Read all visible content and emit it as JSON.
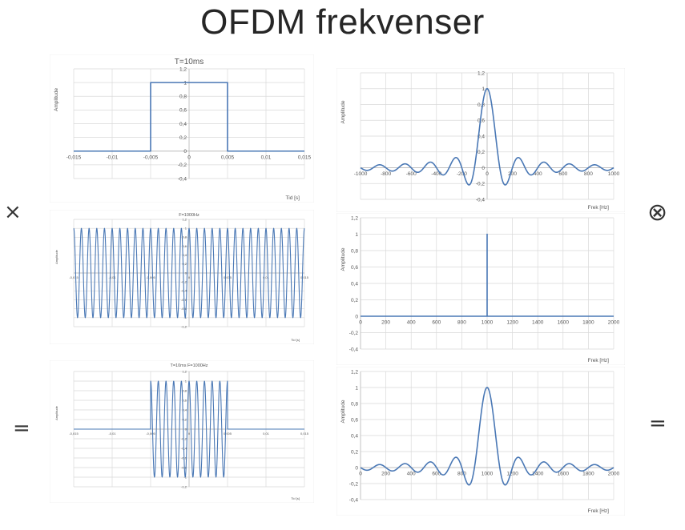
{
  "slide": {
    "title": "OFDM frekvenser",
    "operators": {
      "times": "×",
      "convolve": "⊗",
      "equals_left": "=",
      "equals_right": "="
    }
  },
  "colors": {
    "line": "#4a78b5",
    "grid": "#d9d9d9",
    "axis": "#bfbfbf"
  },
  "chart_data": [
    {
      "id": "rect_time",
      "type": "line",
      "title": "T=10ms",
      "xlabel": "Tid [s]",
      "ylabel": "Amplitude",
      "xlim": [
        -0.015,
        0.015
      ],
      "ylim": [
        -0.4,
        1.2
      ],
      "xticks": [
        "-0,015",
        "-0,01",
        "-0,005",
        "0",
        "0,005",
        "0,01",
        "0,015"
      ],
      "yticks": [
        "1,2",
        "1",
        "0,8",
        "0,6",
        "0,4",
        "0,2",
        "0",
        "-0,2",
        "-0,4"
      ],
      "series": [
        {
          "x": [
            -0.015,
            -0.005,
            -0.005,
            0.005,
            0.005,
            0.015
          ],
          "y": [
            0,
            0,
            1,
            1,
            0,
            0
          ]
        }
      ]
    },
    {
      "id": "sinc_freq",
      "type": "line",
      "title": "",
      "xlabel": "Frek [Hz]",
      "ylabel": "Amplitude",
      "xlim": [
        -1000,
        1000
      ],
      "ylim": [
        -0.4,
        1.2
      ],
      "xticks": [
        "-1000",
        "-800",
        "-600",
        "-400",
        "-200",
        "0",
        "200",
        "400",
        "600",
        "800",
        "1000"
      ],
      "yticks": [
        "1,2",
        "1",
        "0,8",
        "0,6",
        "0,4",
        "0,2",
        "0",
        "-0,2",
        "-0,4"
      ],
      "function": "sinc",
      "center": 0,
      "zero_spacing_hz": 100
    },
    {
      "id": "cos_time",
      "type": "line",
      "title": "F=1000Hz",
      "xlabel": "Tid [s]",
      "ylabel": "Amplitude",
      "xlim": [
        -0.015,
        0.015
      ],
      "ylim": [
        -1.2,
        1.2
      ],
      "xticks": [
        "-0,015",
        "-0,01",
        "-0,005",
        "0",
        "0,005",
        "0,01",
        "0,015"
      ],
      "yticks": [
        "1,2",
        "1",
        "0,8",
        "0,6",
        "0,4",
        "0,2",
        "0",
        "-0,2",
        "-0,4",
        "-0,6",
        "-0,8",
        "-1",
        "-1,2"
      ],
      "function": "cosine",
      "frequency_hz": 1000
    },
    {
      "id": "delta_freq",
      "type": "line",
      "title": "",
      "xlabel": "Frek [Hz]",
      "ylabel": "Amplitude",
      "xlim": [
        0,
        2000
      ],
      "ylim": [
        -0.4,
        1.2
      ],
      "xticks": [
        "0",
        "200",
        "400",
        "600",
        "800",
        "1000",
        "1200",
        "1400",
        "1600",
        "1800",
        "2000"
      ],
      "yticks": [
        "1,2",
        "1",
        "0,8",
        "0,6",
        "0,4",
        "0,2",
        "0",
        "-0,2",
        "-0,4"
      ],
      "series": [
        {
          "x": [
            0,
            1000,
            1000,
            1000,
            2000
          ],
          "y": [
            0,
            0,
            1,
            0,
            0
          ]
        }
      ]
    },
    {
      "id": "burst_time",
      "type": "line",
      "title": "T=10ms   F=1000Hz",
      "xlabel": "Tid [s]",
      "ylabel": "Amplitude",
      "xlim": [
        -0.015,
        0.015
      ],
      "ylim": [
        -1.2,
        1.2
      ],
      "xticks": [
        "-0,015",
        "-0,01",
        "-0,005",
        "0",
        "0,005",
        "0,01",
        "0,015"
      ],
      "yticks": [
        "1,2",
        "1",
        "0,8",
        "0,6",
        "0,4",
        "0,2",
        "0",
        "-0,2",
        "-0,4",
        "-0,6",
        "-0,8",
        "-1",
        "-1,2"
      ],
      "function": "windowed_cosine",
      "frequency_hz": 1000,
      "window": [
        -0.005,
        0.005
      ]
    },
    {
      "id": "sinc_shifted",
      "type": "line",
      "title": "",
      "xlabel": "Frek [Hz]",
      "ylabel": "Amplitude",
      "xlim": [
        0,
        2000
      ],
      "ylim": [
        -0.4,
        1.2
      ],
      "xticks": [
        "0",
        "200",
        "400",
        "600",
        "800",
        "1000",
        "1200",
        "1400",
        "1600",
        "1800",
        "2000"
      ],
      "yticks": [
        "1,2",
        "1",
        "0,8",
        "0,6",
        "0,4",
        "0,2",
        "0",
        "-0,2",
        "-0,4"
      ],
      "function": "sinc",
      "center": 1000,
      "zero_spacing_hz": 100
    }
  ]
}
